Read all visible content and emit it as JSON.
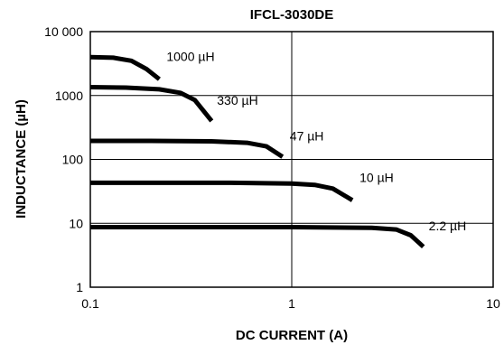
{
  "chart_data": {
    "type": "line",
    "title": "IFCL-3030DE",
    "xlabel": "DC CURRENT (A)",
    "ylabel": "INDUCTANCE (µH)",
    "x_scale": "log",
    "y_scale": "log",
    "xlim": [
      0.1,
      10
    ],
    "ylim": [
      1,
      10000
    ],
    "x_ticks": [
      {
        "value": 0.1,
        "label": "0.1"
      },
      {
        "value": 1,
        "label": "1"
      },
      {
        "value": 10,
        "label": "10"
      }
    ],
    "y_ticks": [
      {
        "value": 1,
        "label": "1"
      },
      {
        "value": 10,
        "label": "10"
      },
      {
        "value": 100,
        "label": "100"
      },
      {
        "value": 1000,
        "label": "1000"
      },
      {
        "value": 10000,
        "label": "10 000"
      }
    ],
    "grid": true,
    "series": [
      {
        "name": "1000 µH",
        "points": [
          [
            0.1,
            4000
          ],
          [
            0.13,
            3900
          ],
          [
            0.16,
            3500
          ],
          [
            0.19,
            2600
          ],
          [
            0.22,
            1800
          ]
        ]
      },
      {
        "name": "330 µH",
        "points": [
          [
            0.1,
            1350
          ],
          [
            0.15,
            1330
          ],
          [
            0.22,
            1250
          ],
          [
            0.28,
            1100
          ],
          [
            0.33,
            850
          ],
          [
            0.4,
            400
          ]
        ]
      },
      {
        "name": "47 µH",
        "points": [
          [
            0.1,
            195
          ],
          [
            0.2,
            195
          ],
          [
            0.4,
            192
          ],
          [
            0.6,
            182
          ],
          [
            0.75,
            160
          ],
          [
            0.9,
            110
          ]
        ]
      },
      {
        "name": "10 µH",
        "points": [
          [
            0.1,
            43
          ],
          [
            0.5,
            43
          ],
          [
            1.0,
            42
          ],
          [
            1.3,
            40
          ],
          [
            1.6,
            35
          ],
          [
            2.0,
            23
          ]
        ]
      },
      {
        "name": "2.2 µH",
        "points": [
          [
            0.1,
            8.7
          ],
          [
            1.0,
            8.7
          ],
          [
            2.5,
            8.5
          ],
          [
            3.3,
            8.0
          ],
          [
            3.9,
            6.5
          ],
          [
            4.5,
            4.3
          ]
        ]
      }
    ]
  }
}
